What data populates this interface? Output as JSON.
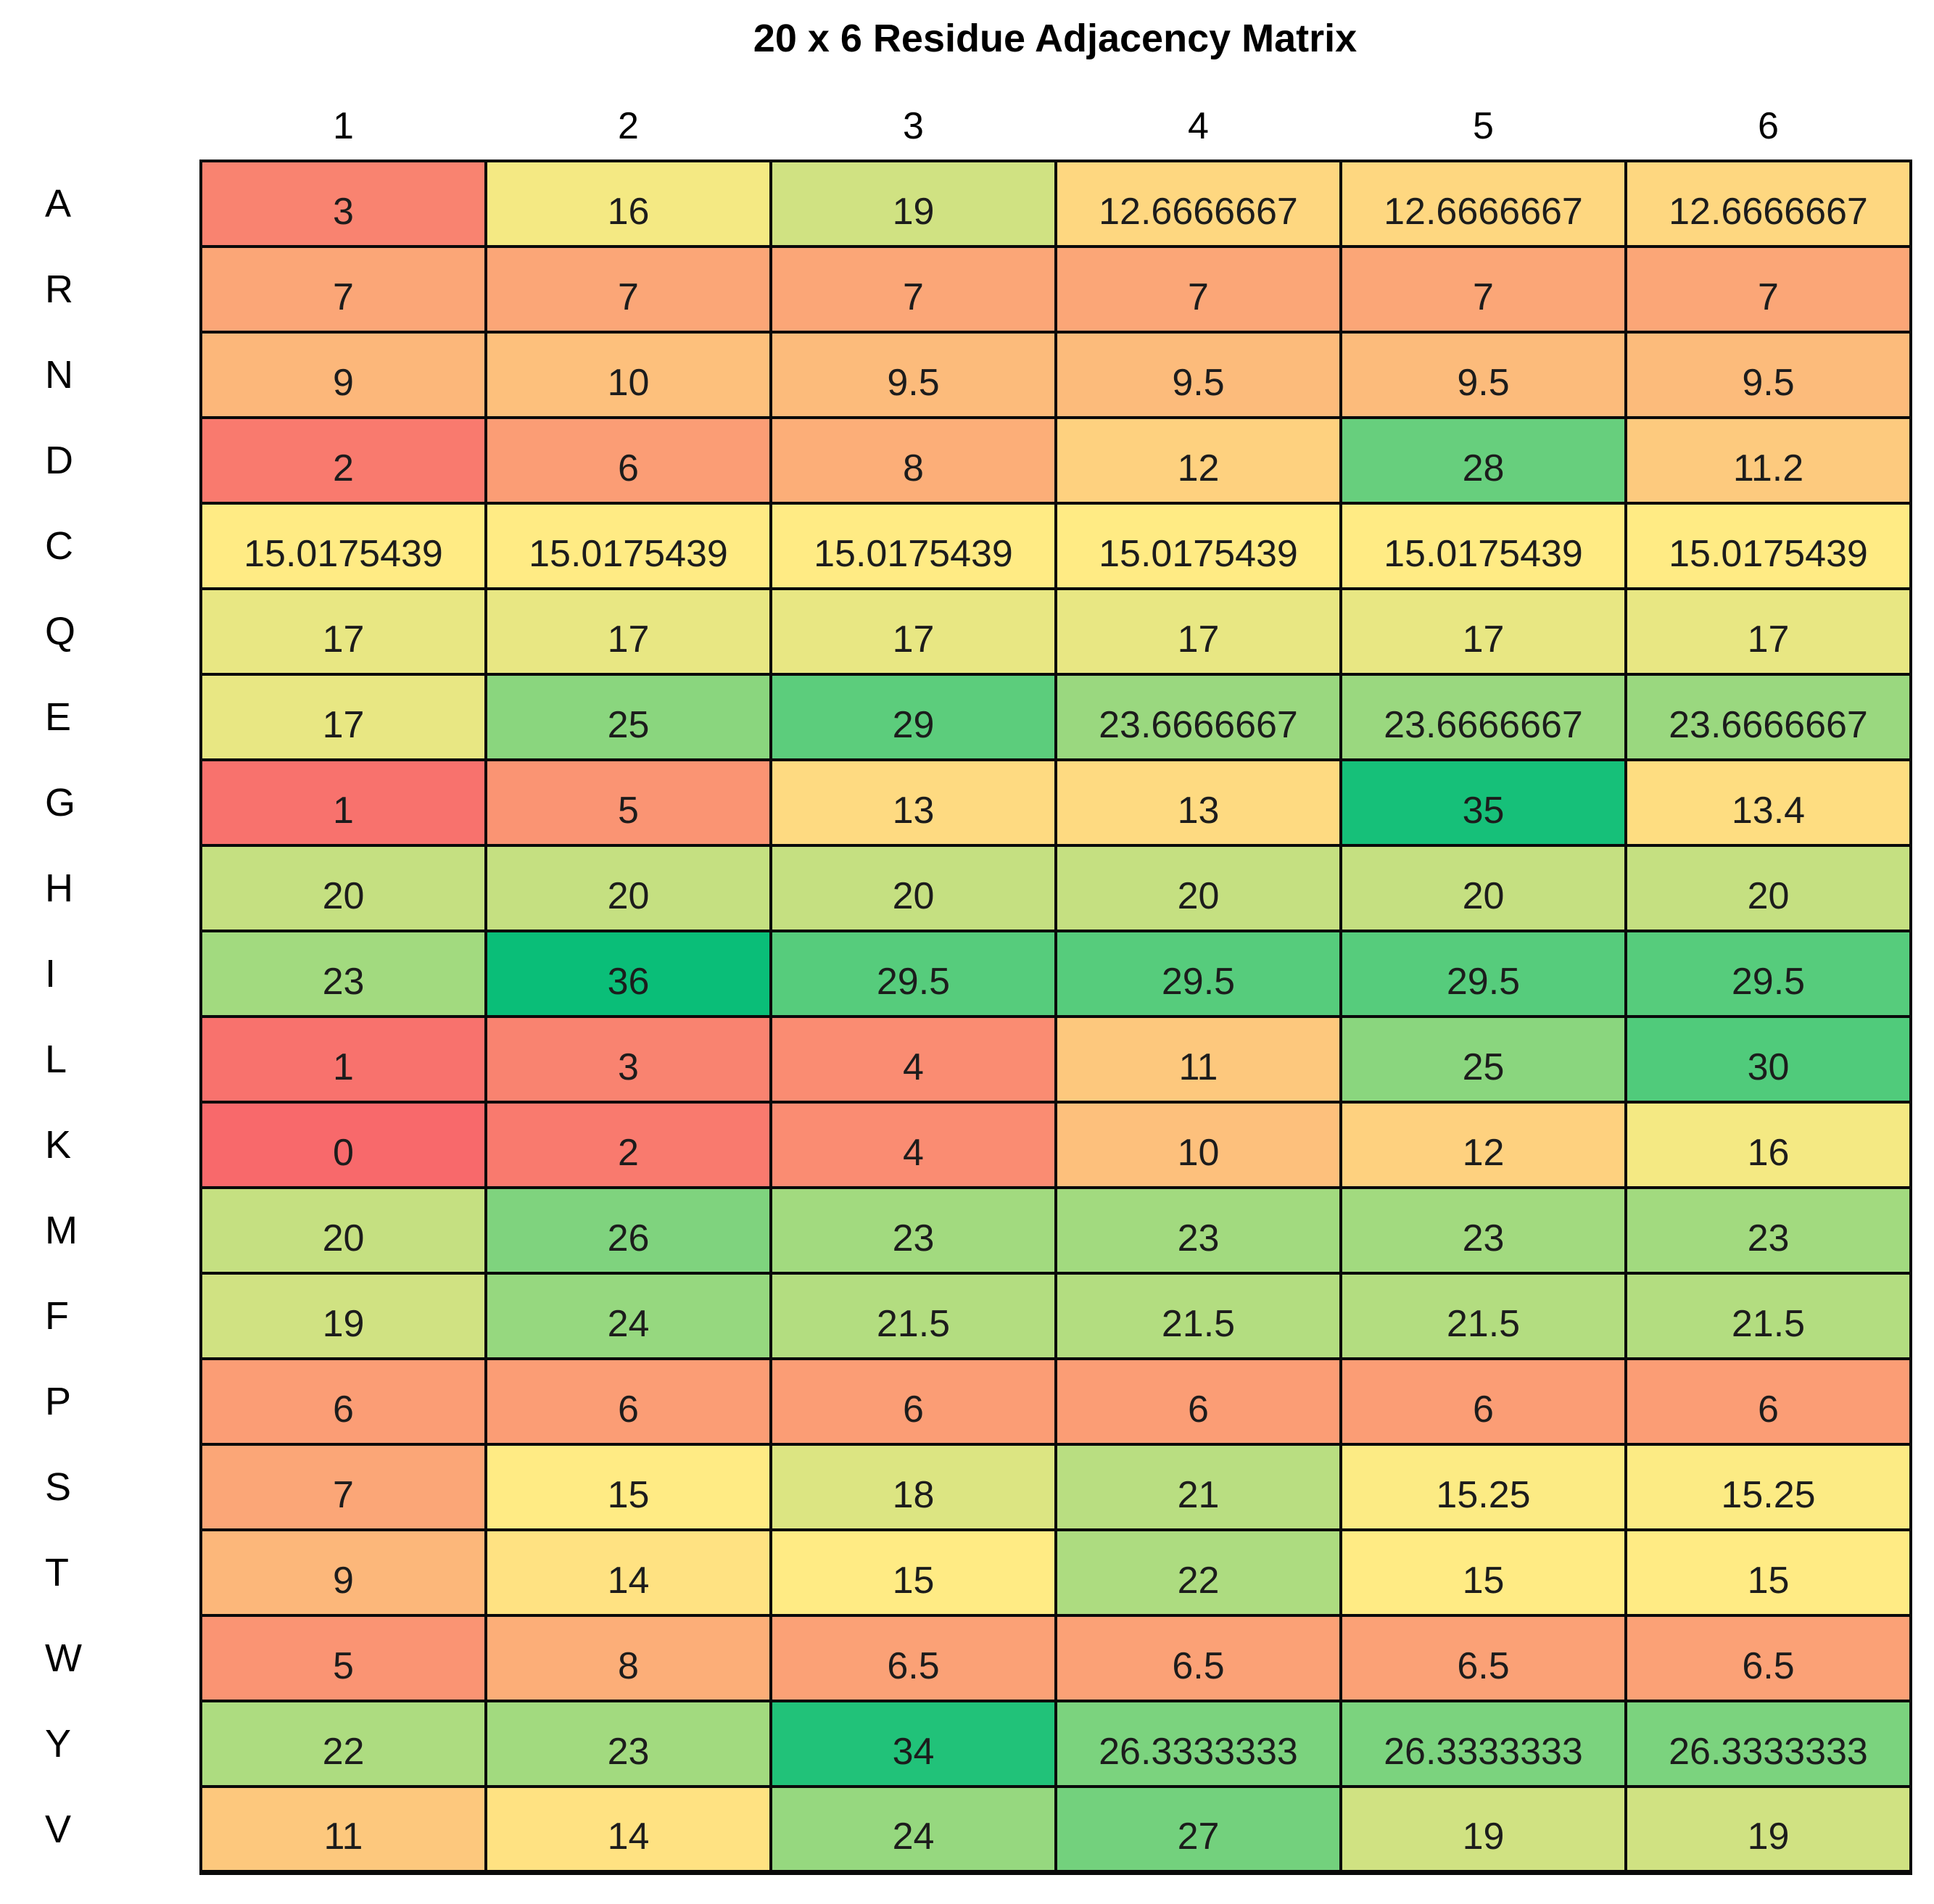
{
  "title": "20 x 6 Residue Adjacency Matrix",
  "chart_data": {
    "type": "heatmap",
    "title": "20 x 6 Residue Adjacency Matrix",
    "columns": [
      "1",
      "2",
      "3",
      "4",
      "5",
      "6"
    ],
    "row_labels": [
      "A",
      "R",
      "N",
      "D",
      "C",
      "Q",
      "E",
      "G",
      "H",
      "I",
      "L",
      "K",
      "M",
      "F",
      "P",
      "S",
      "T",
      "W",
      "Y",
      "V"
    ],
    "rows": [
      [
        3,
        16,
        19,
        12.6666667,
        12.6666667,
        12.6666667
      ],
      [
        7,
        7,
        7,
        7,
        7,
        7
      ],
      [
        9,
        10,
        9.5,
        9.5,
        9.5,
        9.5
      ],
      [
        2,
        6,
        8,
        12,
        28,
        11.2
      ],
      [
        15.0175439,
        15.0175439,
        15.0175439,
        15.0175439,
        15.0175439,
        15.0175439
      ],
      [
        17,
        17,
        17,
        17,
        17,
        17
      ],
      [
        17,
        25,
        29,
        23.6666667,
        23.6666667,
        23.6666667
      ],
      [
        1,
        5,
        13,
        13,
        35,
        13.4
      ],
      [
        20,
        20,
        20,
        20,
        20,
        20
      ],
      [
        23,
        36,
        29.5,
        29.5,
        29.5,
        29.5
      ],
      [
        1,
        3,
        4,
        11,
        25,
        30
      ],
      [
        0,
        2,
        4,
        10,
        12,
        16
      ],
      [
        20,
        26,
        23,
        23,
        23,
        23
      ],
      [
        19,
        24,
        21.5,
        21.5,
        21.5,
        21.5
      ],
      [
        6,
        6,
        6,
        6,
        6,
        6
      ],
      [
        7,
        15,
        18,
        21,
        15.25,
        15.25
      ],
      [
        9,
        14,
        15,
        22,
        15,
        15
      ],
      [
        5,
        8,
        6.5,
        6.5,
        6.5,
        6.5
      ],
      [
        22,
        23,
        34,
        26.3333333,
        26.3333333,
        26.3333333
      ],
      [
        11,
        14,
        24,
        27,
        19,
        19
      ]
    ],
    "color_scale": {
      "min_value": 0,
      "min_color": "#F8696B",
      "mid_value": 15.0175439,
      "mid_color": "#FFEB84",
      "max_value": 36,
      "max_color": "#0ABE78"
    },
    "value_range": [
      0,
      36
    ],
    "grid": true,
    "legend": "none"
  }
}
